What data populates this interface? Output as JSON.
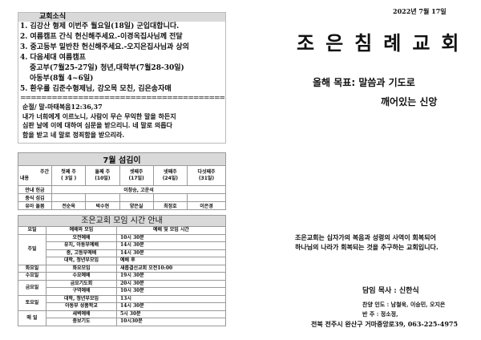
{
  "news": {
    "title": "교회소식",
    "lines": [
      "1. 김강산 형제 이번주 월요일(18일) 군입대합니다.",
      "2. 여름캠프 간식 헌신해주세요.-이경옥집사님께 전달",
      "3. 중고등부 밑반찬 헌신해주세요.-오지은집사님과 상의",
      "4. 다음세대 여름캠프",
      "중고부(7월25-27일)   청년,대학부(7월28-30일)",
      "아동부(8월 4~6일)",
      "5. 환우를 김준수형제님, 강오목 모친, 김은송자매"
    ],
    "separator": "==========================================",
    "verse_ref": "순절/ 말-마태복음12:36,37",
    "verse": [
      "내가 너희에게 이르노니, 사람이 무슨 무익한 말을 하든지",
      "심판 날에 이에 대하여 심문을 받으리니. 네 말로 의롭다",
      "함을 받고 네 말로 정죄함을 받으리라."
    ]
  },
  "service": {
    "title": "7월 섬김이",
    "corner_top": "주간",
    "corner_bottom": "내용",
    "weeks": [
      [
        "첫째 주",
        "( 3일 )"
      ],
      [
        "둘째 주",
        "(10일)"
      ],
      [
        "셋째주",
        "(17일)"
      ],
      [
        "넷째주",
        "(24일)"
      ],
      [
        "다섯째주",
        "(31일)"
      ]
    ],
    "rows": [
      {
        "label": "안내 헌금",
        "merged": "이창승, 고운석"
      },
      {
        "label": "중식 섬김",
        "cells": [
          "",
          "",
          "",
          "",
          ""
        ]
      },
      {
        "label": "유아 돌봄",
        "cells": [
          "전순옥",
          "박수현",
          "양은실",
          "최정호",
          "이은경"
        ]
      }
    ]
  },
  "meetings": {
    "title": "조은교회 모임 시간 안내",
    "headers": [
      "요일",
      "예배와 모임",
      "예배 및 모임 시간"
    ],
    "groups": [
      {
        "day": "주일",
        "items": [
          [
            "오전예배",
            "10시 30분"
          ],
          [
            "유치, 아동부예배",
            "14시 30분"
          ],
          [
            "중, 고등부예배",
            "14시 30분"
          ],
          [
            "대학, 청년부모임",
            "예배 후"
          ]
        ]
      },
      {
        "day": "화요일",
        "items": [
          [
            "화요모임",
            "새롭결선교회 오전10:00"
          ]
        ]
      },
      {
        "day": "수요일",
        "items": [
          [
            "수요예배",
            "19시 30분"
          ]
        ]
      },
      {
        "day": "금요일",
        "items": [
          [
            "금요기도회",
            "20시 30분"
          ],
          [
            "구역예배",
            "10시 30분"
          ]
        ]
      },
      {
        "day": "토요일",
        "items": [
          [
            "대학, 청년부모임",
            "13시"
          ],
          [
            "아동부 성품학교",
            "14시 30분"
          ]
        ]
      },
      {
        "day": "매 일",
        "items": [
          [
            "새벽예배",
            "5시 30분"
          ],
          [
            "중보기도",
            "10시30분"
          ]
        ]
      }
    ]
  },
  "date": "2022년 7월 17일",
  "church_name": "조은침례교회",
  "goal_line1": "올해 목표: 말씀과 기도로",
  "goal_line2": "깨어있는 신앙",
  "mission": [
    "조은교회는 십자가의 복음과 성령의 사역이 회복되어",
    "하나님의 나라가 회복되는 것을 추구하는 교회입니다."
  ],
  "pastor": "담임 목사 : 신한식",
  "worship_leaders": "찬양 인도 : 남철욱, 이승민, 오지은",
  "accompanist": "반      주 : 정소정,",
  "address": "전북 전주시 완산구 거마중앙로39, 063-225-4975"
}
